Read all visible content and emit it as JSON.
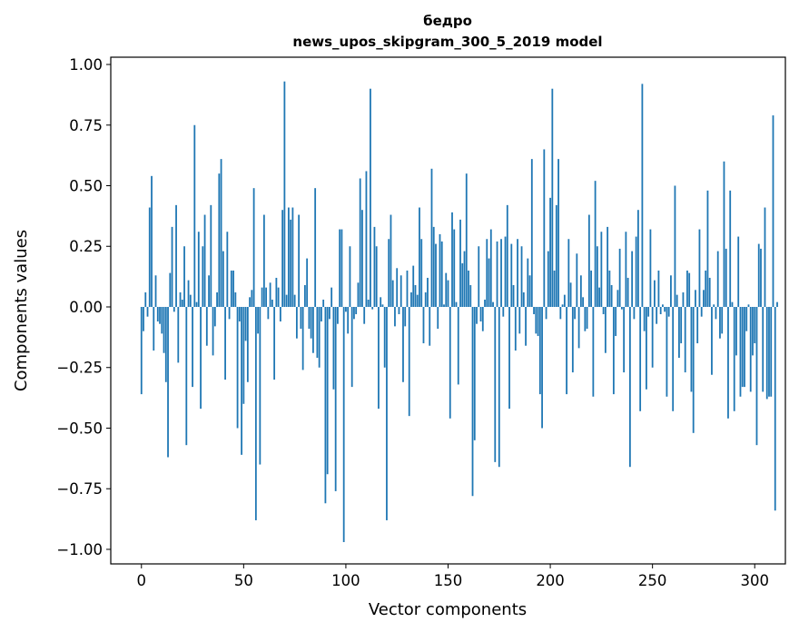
{
  "chart_data": {
    "type": "bar",
    "title": "бедро",
    "subtitle": "news_upos_skipgram_300_5_2019 model",
    "xlabel": "Vector components",
    "ylabel": "Components values",
    "xlim": [
      -15,
      315
    ],
    "ylim": [
      -1.06,
      1.03
    ],
    "xticks": [
      0,
      50,
      100,
      150,
      200,
      250,
      300
    ],
    "xtick_labels": [
      "0",
      "50",
      "100",
      "150",
      "200",
      "250",
      "300"
    ],
    "yticks": [
      -1.0,
      -0.75,
      -0.5,
      -0.25,
      0.0,
      0.25,
      0.5,
      0.75,
      1.0
    ],
    "ytick_labels": [
      "−1.00",
      "−0.75",
      "−0.50",
      "−0.25",
      "0.00",
      "0.25",
      "0.50",
      "0.75",
      "1.00"
    ],
    "bar_color": "#1f77b4",
    "values": [
      -0.36,
      -0.1,
      0.06,
      -0.04,
      0.41,
      0.54,
      -0.18,
      0.13,
      -0.06,
      -0.07,
      -0.11,
      -0.19,
      -0.31,
      -0.62,
      0.14,
      0.33,
      -0.02,
      0.42,
      -0.23,
      0.06,
      0.03,
      0.25,
      -0.57,
      0.11,
      0.05,
      -0.33,
      0.75,
      0.02,
      0.31,
      -0.42,
      0.25,
      0.38,
      -0.16,
      0.13,
      0.42,
      -0.2,
      -0.08,
      0.06,
      0.55,
      0.61,
      0.23,
      -0.3,
      0.31,
      -0.05,
      0.15,
      0.15,
      0.06,
      -0.5,
      -0.06,
      -0.61,
      -0.4,
      -0.14,
      -0.31,
      0.04,
      0.07,
      0.49,
      -0.88,
      -0.11,
      -0.65,
      0.08,
      0.38,
      0.08,
      -0.05,
      0.1,
      0.03,
      -0.3,
      0.12,
      0.08,
      -0.06,
      0.4,
      0.93,
      0.05,
      0.41,
      0.36,
      0.41,
      0.05,
      -0.13,
      0.38,
      -0.09,
      -0.26,
      0.09,
      0.2,
      -0.09,
      -0.13,
      -0.19,
      0.49,
      -0.21,
      -0.25,
      -0.06,
      0.03,
      -0.81,
      -0.69,
      -0.05,
      0.08,
      -0.34,
      -0.76,
      -0.07,
      0.32,
      0.32,
      -0.97,
      -0.02,
      -0.11,
      0.25,
      -0.33,
      -0.05,
      -0.03,
      0.1,
      0.53,
      0.4,
      -0.07,
      0.56,
      0.03,
      0.9,
      -0.01,
      0.33,
      0.25,
      -0.42,
      0.04,
      0.01,
      -0.25,
      -0.88,
      0.28,
      0.38,
      0.11,
      -0.08,
      0.16,
      -0.03,
      0.13,
      -0.31,
      -0.08,
      0.15,
      -0.45,
      0.06,
      0.17,
      0.09,
      0.05,
      0.41,
      0.28,
      -0.15,
      0.06,
      0.12,
      -0.16,
      0.57,
      0.33,
      0.26,
      -0.09,
      0.3,
      0.27,
      0.01,
      0.14,
      0.11,
      -0.46,
      0.39,
      0.32,
      0.02,
      -0.32,
      0.36,
      0.18,
      0.23,
      0.55,
      0.15,
      0.09,
      -0.78,
      -0.55,
      -0.07,
      0.25,
      -0.06,
      -0.1,
      0.03,
      0.28,
      0.2,
      0.32,
      0.02,
      -0.64,
      0.27,
      -0.66,
      0.28,
      -0.04,
      0.29,
      0.42,
      -0.42,
      0.26,
      0.09,
      -0.18,
      0.28,
      -0.11,
      0.25,
      0.06,
      -0.16,
      0.2,
      0.13,
      0.61,
      -0.03,
      -0.11,
      -0.12,
      -0.36,
      -0.5,
      0.65,
      -0.05,
      0.23,
      0.45,
      0.9,
      0.15,
      0.42,
      0.61,
      -0.05,
      0.01,
      0.05,
      -0.36,
      0.28,
      0.1,
      -0.27,
      -0.05,
      0.22,
      -0.17,
      0.13,
      0.04,
      -0.1,
      -0.09,
      0.38,
      0.15,
      -0.37,
      0.52,
      0.25,
      0.08,
      0.31,
      -0.03,
      -0.19,
      0.33,
      0.15,
      0.09,
      -0.36,
      -0.12,
      0.07,
      0.24,
      -0.01,
      -0.27,
      0.31,
      0.12,
      -0.66,
      0.23,
      -0.05,
      0.29,
      0.4,
      -0.43,
      0.92,
      -0.1,
      -0.34,
      -0.04,
      0.32,
      -0.25,
      0.11,
      -0.07,
      0.15,
      -0.03,
      0.01,
      -0.02,
      -0.37,
      -0.04,
      0.13,
      -0.43,
      0.5,
      0.05,
      -0.21,
      -0.15,
      0.06,
      -0.27,
      0.15,
      0.14,
      -0.35,
      -0.52,
      0.07,
      -0.15,
      0.32,
      -0.04,
      0.07,
      0.15,
      0.48,
      0.12,
      -0.28,
      0.01,
      -0.05,
      0.23,
      -0.13,
      -0.11,
      0.6,
      0.24,
      -0.46,
      0.48,
      0.02,
      -0.43,
      -0.2,
      0.29,
      -0.37,
      -0.33,
      -0.33,
      -0.1,
      0.01,
      -0.35,
      -0.2,
      -0.15,
      -0.57,
      0.26,
      0.24,
      -0.35,
      0.41,
      -0.38,
      -0.37,
      -0.37,
      0.79,
      -0.84,
      0.02,
      0.0
    ]
  }
}
